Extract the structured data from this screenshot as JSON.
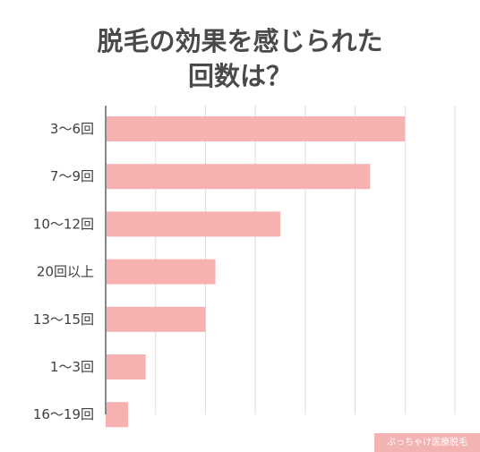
{
  "chart_data": {
    "type": "bar",
    "orientation": "horizontal",
    "title_lines": [
      "脱毛の効果を感じられた",
      "回数は？"
    ],
    "categories": [
      "3〜6回",
      "7〜9回",
      "10〜12回",
      "20回以上",
      "13〜15回",
      "1〜3回",
      "16〜19回"
    ],
    "values": [
      60,
      53,
      35,
      22,
      20,
      8,
      4.5
    ],
    "xlim": [
      0,
      70
    ],
    "x_grid_step": 10,
    "grid": true,
    "bar_color": "#f7b1b1",
    "grid_color": "#dcdcdc",
    "axis_color": "#888888"
  },
  "credit": "ぶっちゃけ医療脱毛"
}
